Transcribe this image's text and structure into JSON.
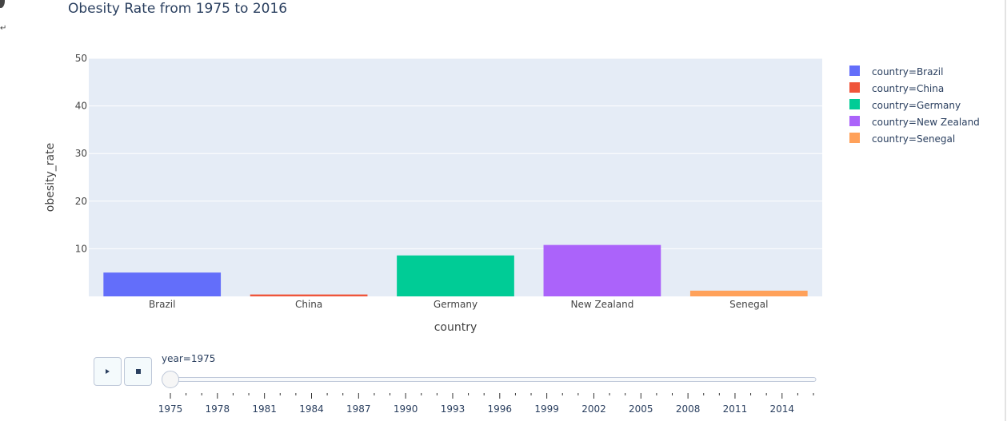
{
  "title": "Obesity Rate from 1975 to 2016",
  "chart_data": {
    "type": "bar",
    "title": "Obesity Rate from 1975 to 2016",
    "xlabel": "country",
    "ylabel": "obesity_rate",
    "categories": [
      "Brazil",
      "China",
      "Germany",
      "New Zealand",
      "Senegal"
    ],
    "ylim": [
      0,
      50
    ],
    "yticks": [
      "10",
      "20",
      "30",
      "40",
      "50"
    ],
    "grid": true,
    "legend_position": "right",
    "series": [
      {
        "name": "country=Brazil",
        "category": "Brazil",
        "value": 5.0,
        "color": "#636efa"
      },
      {
        "name": "country=China",
        "category": "China",
        "value": 0.4,
        "color": "#ef553b"
      },
      {
        "name": "country=Germany",
        "category": "Germany",
        "value": 8.6,
        "color": "#00cc96"
      },
      {
        "name": "country=New Zealand",
        "category": "New Zealand",
        "value": 10.8,
        "color": "#ab63fa"
      },
      {
        "name": "country=Senegal",
        "category": "Senegal",
        "value": 1.2,
        "color": "#ffa15a"
      }
    ]
  },
  "animation": {
    "current_label": "year=1975",
    "current_index": 0,
    "year_labels": [
      "1975",
      "1978",
      "1981",
      "1984",
      "1987",
      "1990",
      "1993",
      "1996",
      "1999",
      "2002",
      "2005",
      "2008",
      "2011",
      "2014"
    ],
    "play_icon": "play-icon",
    "stop_icon": "stop-icon"
  },
  "colors": {
    "plot_bg": "#e5ecf6",
    "text": "#2a3f5f",
    "grid": "#ffffff"
  }
}
